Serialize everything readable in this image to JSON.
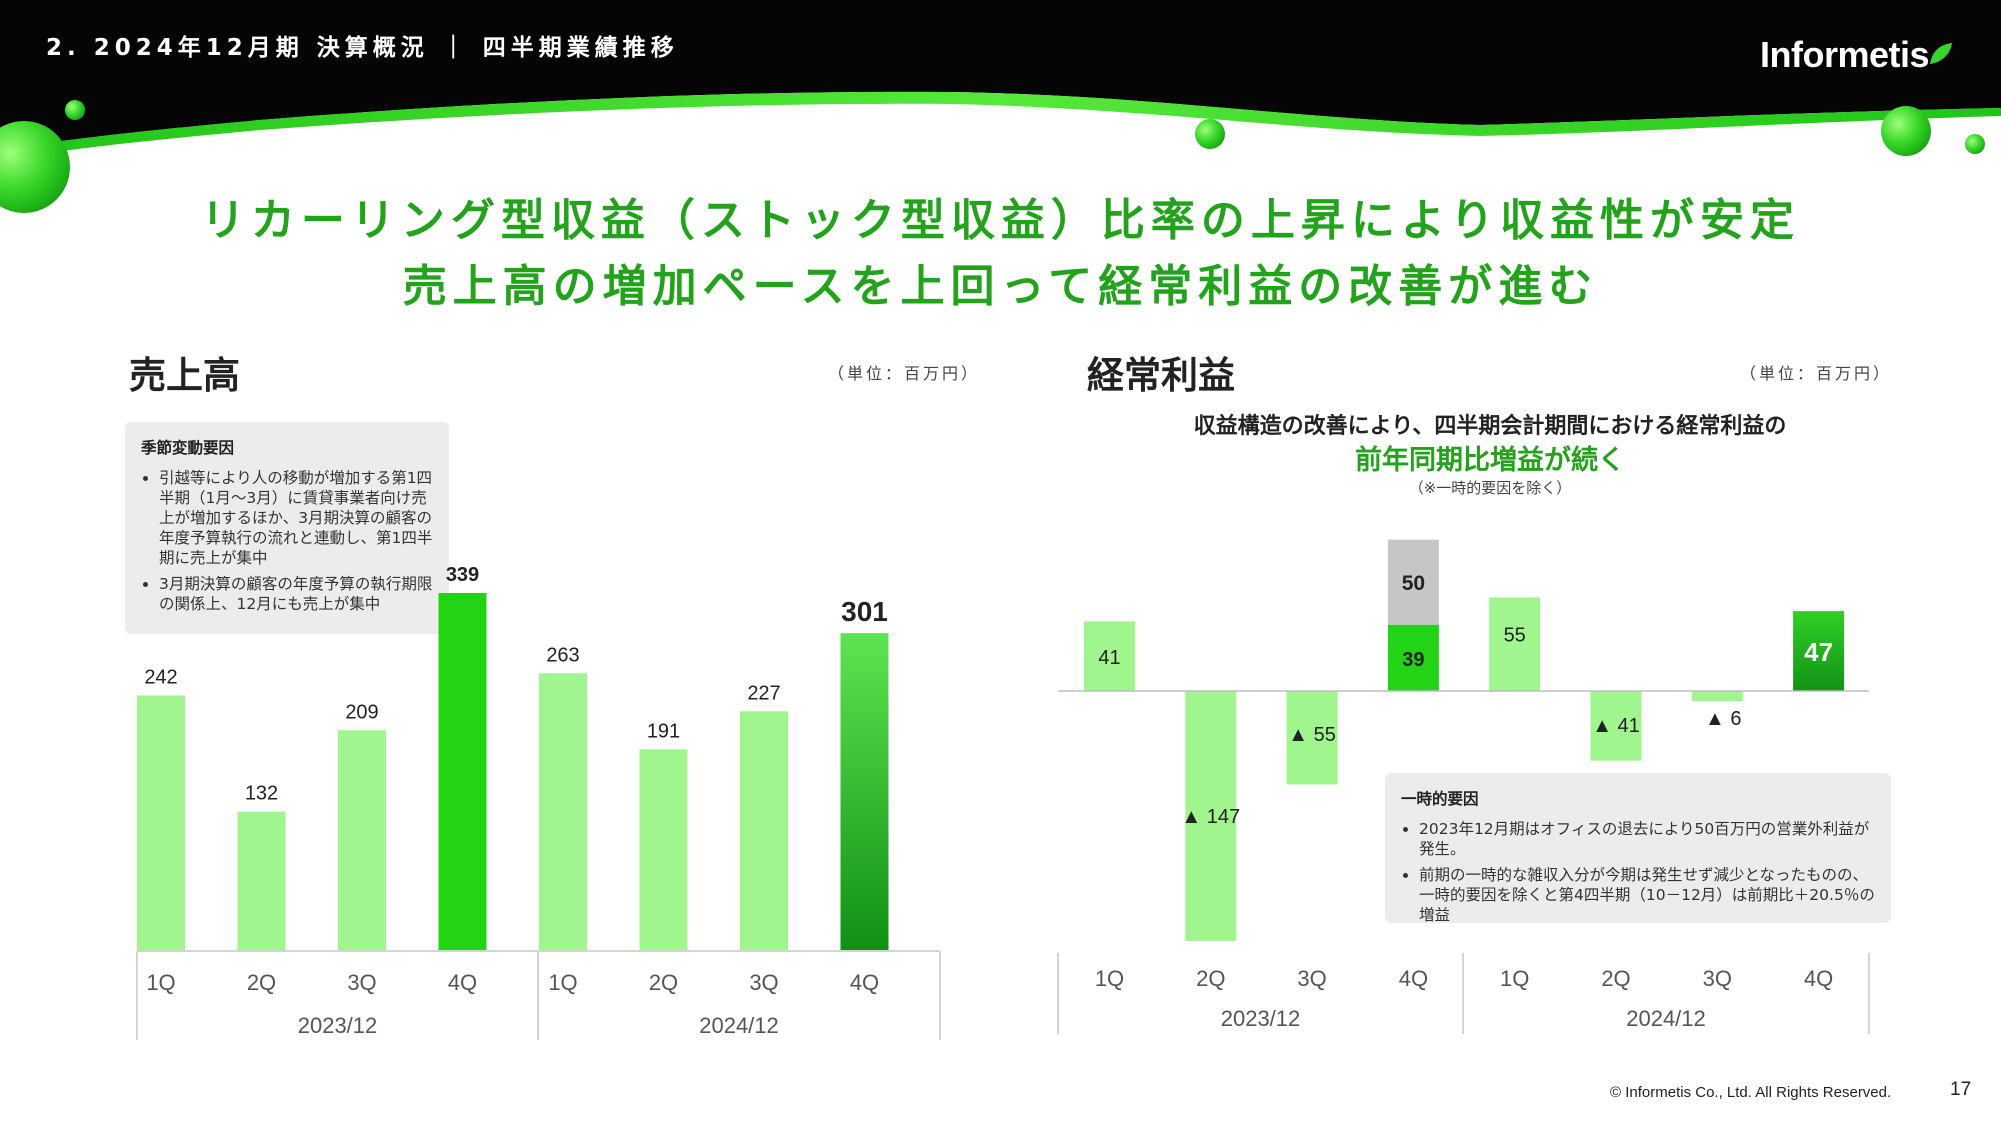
{
  "header": {
    "breadcrumb": "2. 2024年12月期 決算概況 ｜ 四半期業績推移",
    "logo_text": "Informetis"
  },
  "headline": {
    "line1": "リカーリング型収益（ストック型収益）比率の上昇により収益性が安定",
    "line2": "売上高の増加ペースを上回って経常利益の改善が進む"
  },
  "left_panel": {
    "title": "売上高",
    "unit": "（単位：百万円）",
    "note": {
      "title": "季節変動要因",
      "items": [
        "引越等により人の移動が増加する第1四半期（1月〜3月）に賃貸事業者向け売上が増加するほか、3月期決算の顧客の年度予算執行の流れと連動し、第1四半期に売上が集中",
        "3月期決算の顧客の年度予算の執行期限の関係上、12月にも売上が集中"
      ]
    }
  },
  "right_panel": {
    "title": "経常利益",
    "unit": "（単位：百万円）",
    "subtitle1": "収益構造の改善により、四半期会計期間における経常利益の",
    "subtitle2": "前年同期比増益が続く",
    "subtitle3": "（※一時的要因を除く）",
    "note": {
      "title": "一時的要因",
      "items": [
        "2023年12月期はオフィスの退去により50百万円の営業外利益が発生。",
        "前期の一時的な雑収入分が今期は発生せず減少となったものの、一時的要因を除くと第4四半期（10－12月）は前期比＋20.5％の増益"
      ]
    }
  },
  "chart_data": [
    {
      "type": "bar",
      "title": "売上高",
      "unit": "百万円",
      "categories": [
        "1Q",
        "2Q",
        "3Q",
        "4Q",
        "1Q",
        "2Q",
        "3Q",
        "4Q"
      ],
      "groups": [
        "2023/12",
        "2024/12"
      ],
      "values": [
        242,
        132,
        209,
        339,
        263,
        191,
        227,
        301
      ],
      "labels": [
        "242",
        "132",
        "209",
        "339",
        "263",
        "191",
        "227",
        "301"
      ],
      "ylim": [
        0,
        339
      ],
      "colors": {
        "normal": "#a0f58f",
        "q4_prev": "#23d416",
        "q4_top": "#5ee452",
        "q4_bottom": "#0f9014"
      }
    },
    {
      "type": "bar",
      "title": "経常利益",
      "unit": "百万円",
      "categories": [
        "1Q",
        "2Q",
        "3Q",
        "4Q",
        "1Q",
        "2Q",
        "3Q",
        "4Q"
      ],
      "groups": [
        "2023/12",
        "2024/12"
      ],
      "values": [
        41,
        -147,
        -55,
        39,
        55,
        -41,
        -6,
        47
      ],
      "labels": [
        "41",
        "▲ 147",
        "▲ 55",
        "39",
        "55",
        "▲ 41",
        "▲ 6",
        "47"
      ],
      "stacked_extra": [
        0,
        0,
        0,
        50,
        0,
        0,
        0,
        0
      ],
      "stacked_extra_label": "50",
      "ylim": [
        -147,
        89
      ],
      "colors": {
        "normal": "#a0f58f",
        "q4_prev": "#23d416",
        "extra": "#c6c6c6",
        "q4_top": "#2fd023",
        "q4_bottom": "#14921a"
      }
    }
  ],
  "footer": {
    "copyright": "© Informetis Co., Ltd. All Rights Reserved.",
    "page_number": "17"
  }
}
